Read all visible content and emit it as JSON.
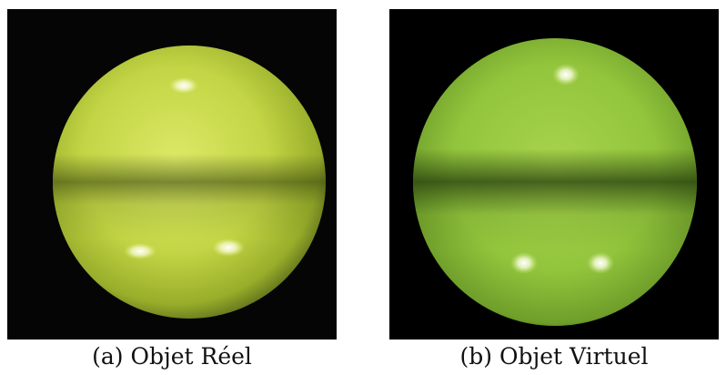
{
  "figure": {
    "panels": [
      {
        "caption": "(a) Objet Réel",
        "subject": "photographed yellow-green sphere on black background",
        "colors": {
          "background": "#050505",
          "sphere_light": "#d6e55a",
          "sphere_mid": "#b7cc3a",
          "band_dark": "#5a6a1c"
        }
      },
      {
        "caption": "(b) Objet Virtuel",
        "subject": "rendered green sphere on black background",
        "colors": {
          "background": "#000000",
          "sphere_light": "#a6d64c",
          "sphere_mid": "#8fc43a",
          "band_dark": "#2f4a14"
        }
      }
    ]
  }
}
